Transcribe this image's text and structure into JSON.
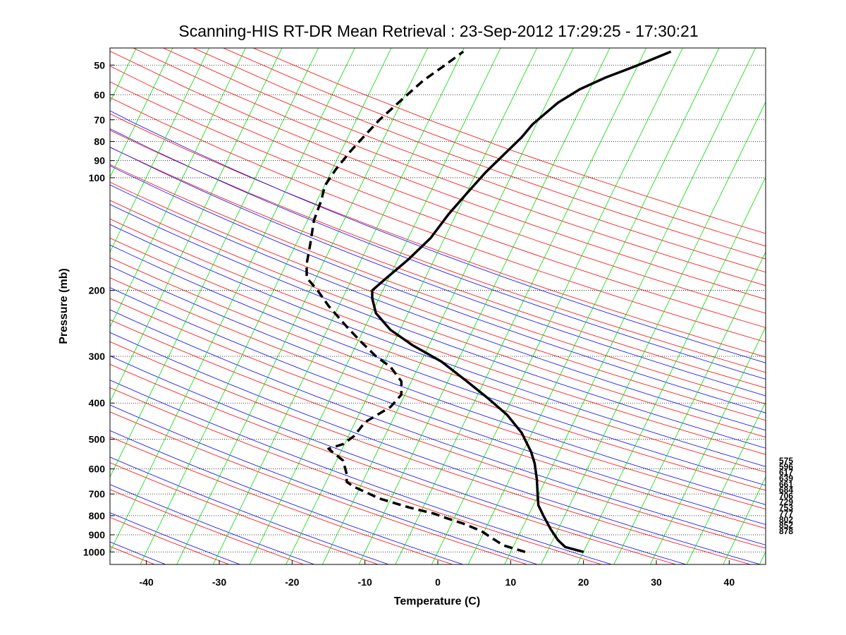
{
  "chart_data": {
    "type": "line",
    "title": "Scanning-HIS RT-DR Mean Retrieval : 23-Sep-2012 17:29:25 - 17:30:21",
    "xlabel": "Temperature (C)",
    "ylabel": "Pressure (mb)",
    "xlim": [
      -45,
      45
    ],
    "ylim": [
      1080,
      45
    ],
    "y_scale": "log",
    "grid": "horizontal dotted at pressure ticks",
    "x_ticks": [
      "-40",
      "-30",
      "-20",
      "-10",
      "0",
      "10",
      "20",
      "30",
      "40"
    ],
    "y_ticks": [
      "50",
      "60",
      "70",
      "80",
      "90",
      "100",
      "200",
      "300",
      "400",
      "500",
      "600",
      "700",
      "800",
      "900",
      "1000"
    ],
    "series": [
      {
        "style": "solid-black-thick",
        "x": [
          20,
          17.5,
          16.5,
          15.5,
          14.5,
          13.8,
          13.7,
          13.6,
          13.3,
          12.8,
          11.5,
          9.5,
          7,
          4,
          0.5,
          -3.5,
          -6.5,
          -8.5,
          -9,
          -9,
          -7,
          -4,
          -1,
          1.5,
          4,
          6.5,
          9,
          11.5,
          13,
          14.5,
          16.5,
          19.5,
          23,
          27.5,
          32
        ],
        "y": [
          1000,
          970,
          930,
          870,
          800,
          750,
          700,
          640,
          580,
          540,
          480,
          430,
          390,
          350,
          310,
          280,
          255,
          230,
          210,
          200,
          185,
          165,
          145,
          125,
          110,
          97,
          87,
          78,
          72,
          68,
          63,
          58,
          54,
          50,
          46
        ]
      },
      {
        "style": "dashed-black-thick",
        "x": [
          12,
          9,
          7.5,
          6,
          3.5,
          1,
          -0.5,
          -4,
          -8,
          -11.5,
          -12.5,
          -12.5,
          -13,
          -15,
          -13,
          -11.5,
          -10,
          -6.5,
          -5,
          -5,
          -6.5,
          -8.5,
          -10.5,
          -12.5,
          -15,
          -16.5,
          -18,
          -18,
          -17.5,
          -17,
          -16,
          -15.5,
          -14,
          -12,
          -10,
          -8,
          -5,
          -2,
          1,
          3.5
        ],
        "y": [
          1000,
          960,
          920,
          880,
          840,
          810,
          790,
          760,
          720,
          670,
          650,
          620,
          570,
          530,
          515,
          490,
          450,
          410,
          380,
          350,
          320,
          300,
          275,
          250,
          220,
          200,
          185,
          170,
          150,
          130,
          115,
          105,
          95,
          85,
          77,
          70,
          62,
          55,
          50,
          46
        ]
      }
    ],
    "right_labels": [
      "575",
      "596",
      "617",
      "639",
      "661",
      "684",
      "706",
      "729",
      "753",
      "777",
      "802",
      "852",
      "878"
    ],
    "background_lines": {
      "dry_adiabat_color": "#ff0000",
      "moist_adiabat_color": "#0000ff",
      "mixing_ratio_color": "#00dd00"
    },
    "colors": {
      "profile": "#000000",
      "grid": "#000000"
    }
  }
}
